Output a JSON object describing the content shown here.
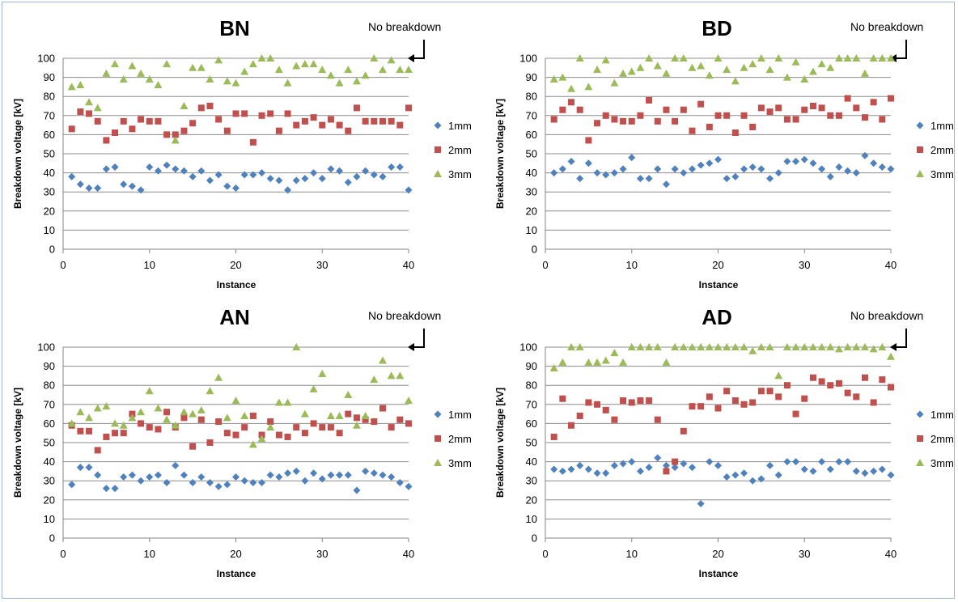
{
  "chart_data": [
    {
      "type": "scatter",
      "title": "BN",
      "xlabel": "Instance",
      "ylabel": "Breakdown voltage [kV]",
      "xlim": [
        0,
        40
      ],
      "ylim": [
        0,
        100
      ],
      "xticks": [
        0,
        10,
        20,
        30,
        40
      ],
      "yticks": [
        0,
        10,
        20,
        30,
        40,
        50,
        60,
        70,
        80,
        90,
        100
      ],
      "grid": true,
      "legend": "right",
      "annotation": "No breakdown",
      "x": [
        1,
        2,
        3,
        4,
        5,
        6,
        7,
        8,
        9,
        10,
        11,
        12,
        13,
        14,
        15,
        16,
        17,
        18,
        19,
        20,
        21,
        22,
        23,
        24,
        25,
        26,
        27,
        28,
        29,
        30,
        31,
        32,
        33,
        34,
        35,
        36,
        37,
        38,
        39,
        40
      ],
      "series": [
        {
          "name": "1mm",
          "marker": "diamond",
          "color": "#4f81bd",
          "values": [
            38,
            34,
            32,
            32,
            42,
            43,
            34,
            33,
            31,
            43,
            41,
            44,
            42,
            41,
            38,
            41,
            36,
            39,
            33,
            32,
            39,
            39,
            40,
            37,
            36,
            31,
            36,
            37,
            40,
            37,
            42,
            41,
            35,
            38,
            41,
            39,
            38,
            43,
            43,
            31
          ]
        },
        {
          "name": "2mm",
          "marker": "square",
          "color": "#c0504d",
          "values": [
            63,
            72,
            71,
            67,
            57,
            61,
            67,
            63,
            68,
            67,
            67,
            60,
            60,
            62,
            66,
            74,
            75,
            68,
            62,
            71,
            71,
            56,
            70,
            71,
            62,
            71,
            65,
            67,
            69,
            65,
            68,
            65,
            62,
            74,
            67,
            67,
            67,
            67,
            65,
            74
          ]
        },
        {
          "name": "3mm",
          "marker": "triangle",
          "color": "#9bbb59",
          "values": [
            85,
            86,
            77,
            74,
            92,
            97,
            89,
            96,
            92,
            89,
            86,
            97,
            57,
            75,
            95,
            95,
            89,
            99,
            88,
            87,
            93,
            97,
            100,
            100,
            94,
            87,
            96,
            97,
            97,
            94,
            91,
            87,
            94,
            88,
            91,
            100,
            94,
            99,
            94,
            94
          ]
        }
      ]
    },
    {
      "type": "scatter",
      "title": "BD",
      "xlabel": "Instance",
      "ylabel": "Breakdown voltage [kV]",
      "xlim": [
        0,
        40
      ],
      "ylim": [
        0,
        100
      ],
      "xticks": [
        0,
        10,
        20,
        30,
        40
      ],
      "yticks": [
        0,
        10,
        20,
        30,
        40,
        50,
        60,
        70,
        80,
        90,
        100
      ],
      "grid": true,
      "legend": "right",
      "annotation": "No breakdown",
      "x": [
        1,
        2,
        3,
        4,
        5,
        6,
        7,
        8,
        9,
        10,
        11,
        12,
        13,
        14,
        15,
        16,
        17,
        18,
        19,
        20,
        21,
        22,
        23,
        24,
        25,
        26,
        27,
        28,
        29,
        30,
        31,
        32,
        33,
        34,
        35,
        36,
        37,
        38,
        39,
        40
      ],
      "series": [
        {
          "name": "1mm",
          "marker": "diamond",
          "color": "#4f81bd",
          "values": [
            40,
            42,
            46,
            37,
            45,
            40,
            39,
            40,
            42,
            48,
            37,
            37,
            42,
            34,
            42,
            40,
            42,
            44,
            45,
            47,
            37,
            38,
            42,
            43,
            42,
            37,
            40,
            46,
            46,
            47,
            45,
            42,
            38,
            43,
            41,
            40,
            49,
            45,
            43,
            42
          ]
        },
        {
          "name": "2mm",
          "marker": "square",
          "color": "#c0504d",
          "values": [
            68,
            73,
            77,
            73,
            57,
            66,
            70,
            68,
            67,
            67,
            70,
            78,
            67,
            73,
            67,
            73,
            62,
            76,
            64,
            70,
            70,
            61,
            70,
            64,
            74,
            72,
            74,
            68,
            68,
            73,
            75,
            74,
            70,
            70,
            79,
            74,
            69,
            77,
            68,
            79
          ]
        },
        {
          "name": "3mm",
          "marker": "triangle",
          "color": "#9bbb59",
          "values": [
            89,
            90,
            84,
            100,
            85,
            94,
            99,
            87,
            92,
            93,
            95,
            100,
            96,
            92,
            100,
            100,
            95,
            96,
            91,
            100,
            94,
            88,
            95,
            97,
            100,
            94,
            100,
            90,
            98,
            89,
            93,
            97,
            95,
            100,
            100,
            100,
            92,
            100,
            100,
            100
          ]
        }
      ]
    },
    {
      "type": "scatter",
      "title": "AN",
      "xlabel": "Instance",
      "ylabel": "Breakdown voltage [kV]",
      "xlim": [
        0,
        40
      ],
      "ylim": [
        0,
        100
      ],
      "xticks": [
        0,
        10,
        20,
        30,
        40
      ],
      "yticks": [
        0,
        10,
        20,
        30,
        40,
        50,
        60,
        70,
        80,
        90,
        100
      ],
      "grid": true,
      "legend": "right",
      "annotation": "No breakdown",
      "x": [
        1,
        2,
        3,
        4,
        5,
        6,
        7,
        8,
        9,
        10,
        11,
        12,
        13,
        14,
        15,
        16,
        17,
        18,
        19,
        20,
        21,
        22,
        23,
        24,
        25,
        26,
        27,
        28,
        29,
        30,
        31,
        32,
        33,
        34,
        35,
        36,
        37,
        38,
        39,
        40
      ],
      "series": [
        {
          "name": "1mm",
          "marker": "diamond",
          "color": "#4f81bd",
          "values": [
            28,
            37,
            37,
            33,
            26,
            26,
            32,
            33,
            30,
            32,
            33,
            29,
            38,
            33,
            29,
            32,
            29,
            27,
            28,
            32,
            30,
            29,
            29,
            33,
            32,
            34,
            35,
            30,
            34,
            31,
            33,
            33,
            33,
            25,
            35,
            34,
            33,
            32,
            29,
            27
          ]
        },
        {
          "name": "2mm",
          "marker": "square",
          "color": "#c0504d",
          "values": [
            59,
            56,
            56,
            46,
            53,
            55,
            55,
            65,
            60,
            58,
            57,
            66,
            58,
            63,
            48,
            62,
            50,
            61,
            55,
            54,
            58,
            64,
            54,
            61,
            54,
            53,
            58,
            55,
            60,
            58,
            58,
            55,
            65,
            63,
            62,
            61,
            68,
            58,
            62,
            60
          ]
        },
        {
          "name": "3mm",
          "marker": "triangle",
          "color": "#9bbb59",
          "values": [
            60,
            66,
            63,
            68,
            69,
            60,
            59,
            63,
            66,
            77,
            68,
            62,
            59,
            66,
            65,
            67,
            77,
            84,
            63,
            72,
            64,
            49,
            52,
            58,
            71,
            71,
            100,
            65,
            78,
            86,
            64,
            64,
            75,
            59,
            64,
            83,
            93,
            85,
            85,
            72
          ]
        }
      ]
    },
    {
      "type": "scatter",
      "title": "AD",
      "xlabel": "Instance",
      "ylabel": "Breakdown voltage [kV]",
      "xlim": [
        0,
        40
      ],
      "ylim": [
        0,
        100
      ],
      "xticks": [
        0,
        10,
        20,
        30,
        40
      ],
      "yticks": [
        0,
        10,
        20,
        30,
        40,
        50,
        60,
        70,
        80,
        90,
        100
      ],
      "grid": true,
      "legend": "right",
      "annotation": "No breakdown",
      "x": [
        1,
        2,
        3,
        4,
        5,
        6,
        7,
        8,
        9,
        10,
        11,
        12,
        13,
        14,
        15,
        16,
        17,
        18,
        19,
        20,
        21,
        22,
        23,
        24,
        25,
        26,
        27,
        28,
        29,
        30,
        31,
        32,
        33,
        34,
        35,
        36,
        37,
        38,
        39,
        40
      ],
      "series": [
        {
          "name": "1mm",
          "marker": "diamond",
          "color": "#4f81bd",
          "values": [
            36,
            35,
            36,
            38,
            36,
            34,
            34,
            38,
            39,
            40,
            35,
            37,
            42,
            38,
            37,
            39,
            37,
            18,
            40,
            38,
            32,
            33,
            34,
            30,
            31,
            38,
            33,
            40,
            40,
            36,
            35,
            40,
            36,
            40,
            40,
            35,
            34,
            35,
            36,
            33
          ]
        },
        {
          "name": "2mm",
          "marker": "square",
          "color": "#c0504d",
          "values": [
            53,
            73,
            59,
            64,
            71,
            70,
            67,
            62,
            72,
            71,
            72,
            72,
            62,
            35,
            40,
            56,
            69,
            69,
            74,
            68,
            77,
            72,
            70,
            71,
            77,
            77,
            74,
            80,
            65,
            73,
            84,
            82,
            80,
            81,
            76,
            74,
            84,
            71,
            83,
            79
          ]
        },
        {
          "name": "3mm",
          "marker": "triangle",
          "color": "#9bbb59",
          "values": [
            89,
            92,
            100,
            100,
            92,
            92,
            93,
            97,
            92,
            100,
            100,
            100,
            100,
            92,
            100,
            100,
            100,
            100,
            100,
            100,
            100,
            100,
            100,
            98,
            100,
            100,
            85,
            100,
            100,
            100,
            100,
            100,
            100,
            99,
            100,
            100,
            100,
            99,
            100,
            95
          ]
        }
      ]
    }
  ]
}
